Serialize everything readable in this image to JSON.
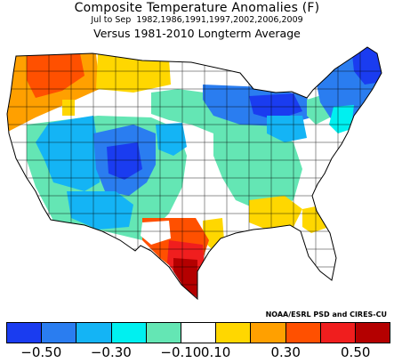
{
  "title": "Composite Temperature Anomalies (F)",
  "subtitle_period": "Jul to Sep",
  "subtitle_years": "1982,1986,1991,1997,2002,2006,2009",
  "baseline_text": "Versus 1981-2010 Longterm Average",
  "credit": "NOAA/ESRL PSD and CIRES-CU",
  "colorbar": {
    "colors": [
      "#1a3cf0",
      "#2a7df0",
      "#14b4f5",
      "#00f0f0",
      "#64e6b4",
      "#ffffff",
      "#ffd700",
      "#ffa000",
      "#ff5000",
      "#f01e1e",
      "#b40000"
    ],
    "tick_labels": [
      "-0.50",
      "-0.30",
      "-0.10",
      "0.10",
      "0.30",
      "0.50"
    ]
  },
  "map_regions": [
    {
      "region": "Pacific Northwest coast",
      "color": "orange"
    },
    {
      "region": "Northern Rockies / Plains",
      "color": "yellow"
    },
    {
      "region": "Great Basin / Four Corners",
      "color": "blue"
    },
    {
      "region": "Southwest",
      "color": "cyan"
    },
    {
      "region": "Upper Midwest / Great Lakes",
      "color": "blue"
    },
    {
      "region": "New England",
      "color": "dark-blue"
    },
    {
      "region": "Southeast",
      "color": "yellow"
    },
    {
      "region": "South Texas",
      "color": "dark-red"
    }
  ]
}
